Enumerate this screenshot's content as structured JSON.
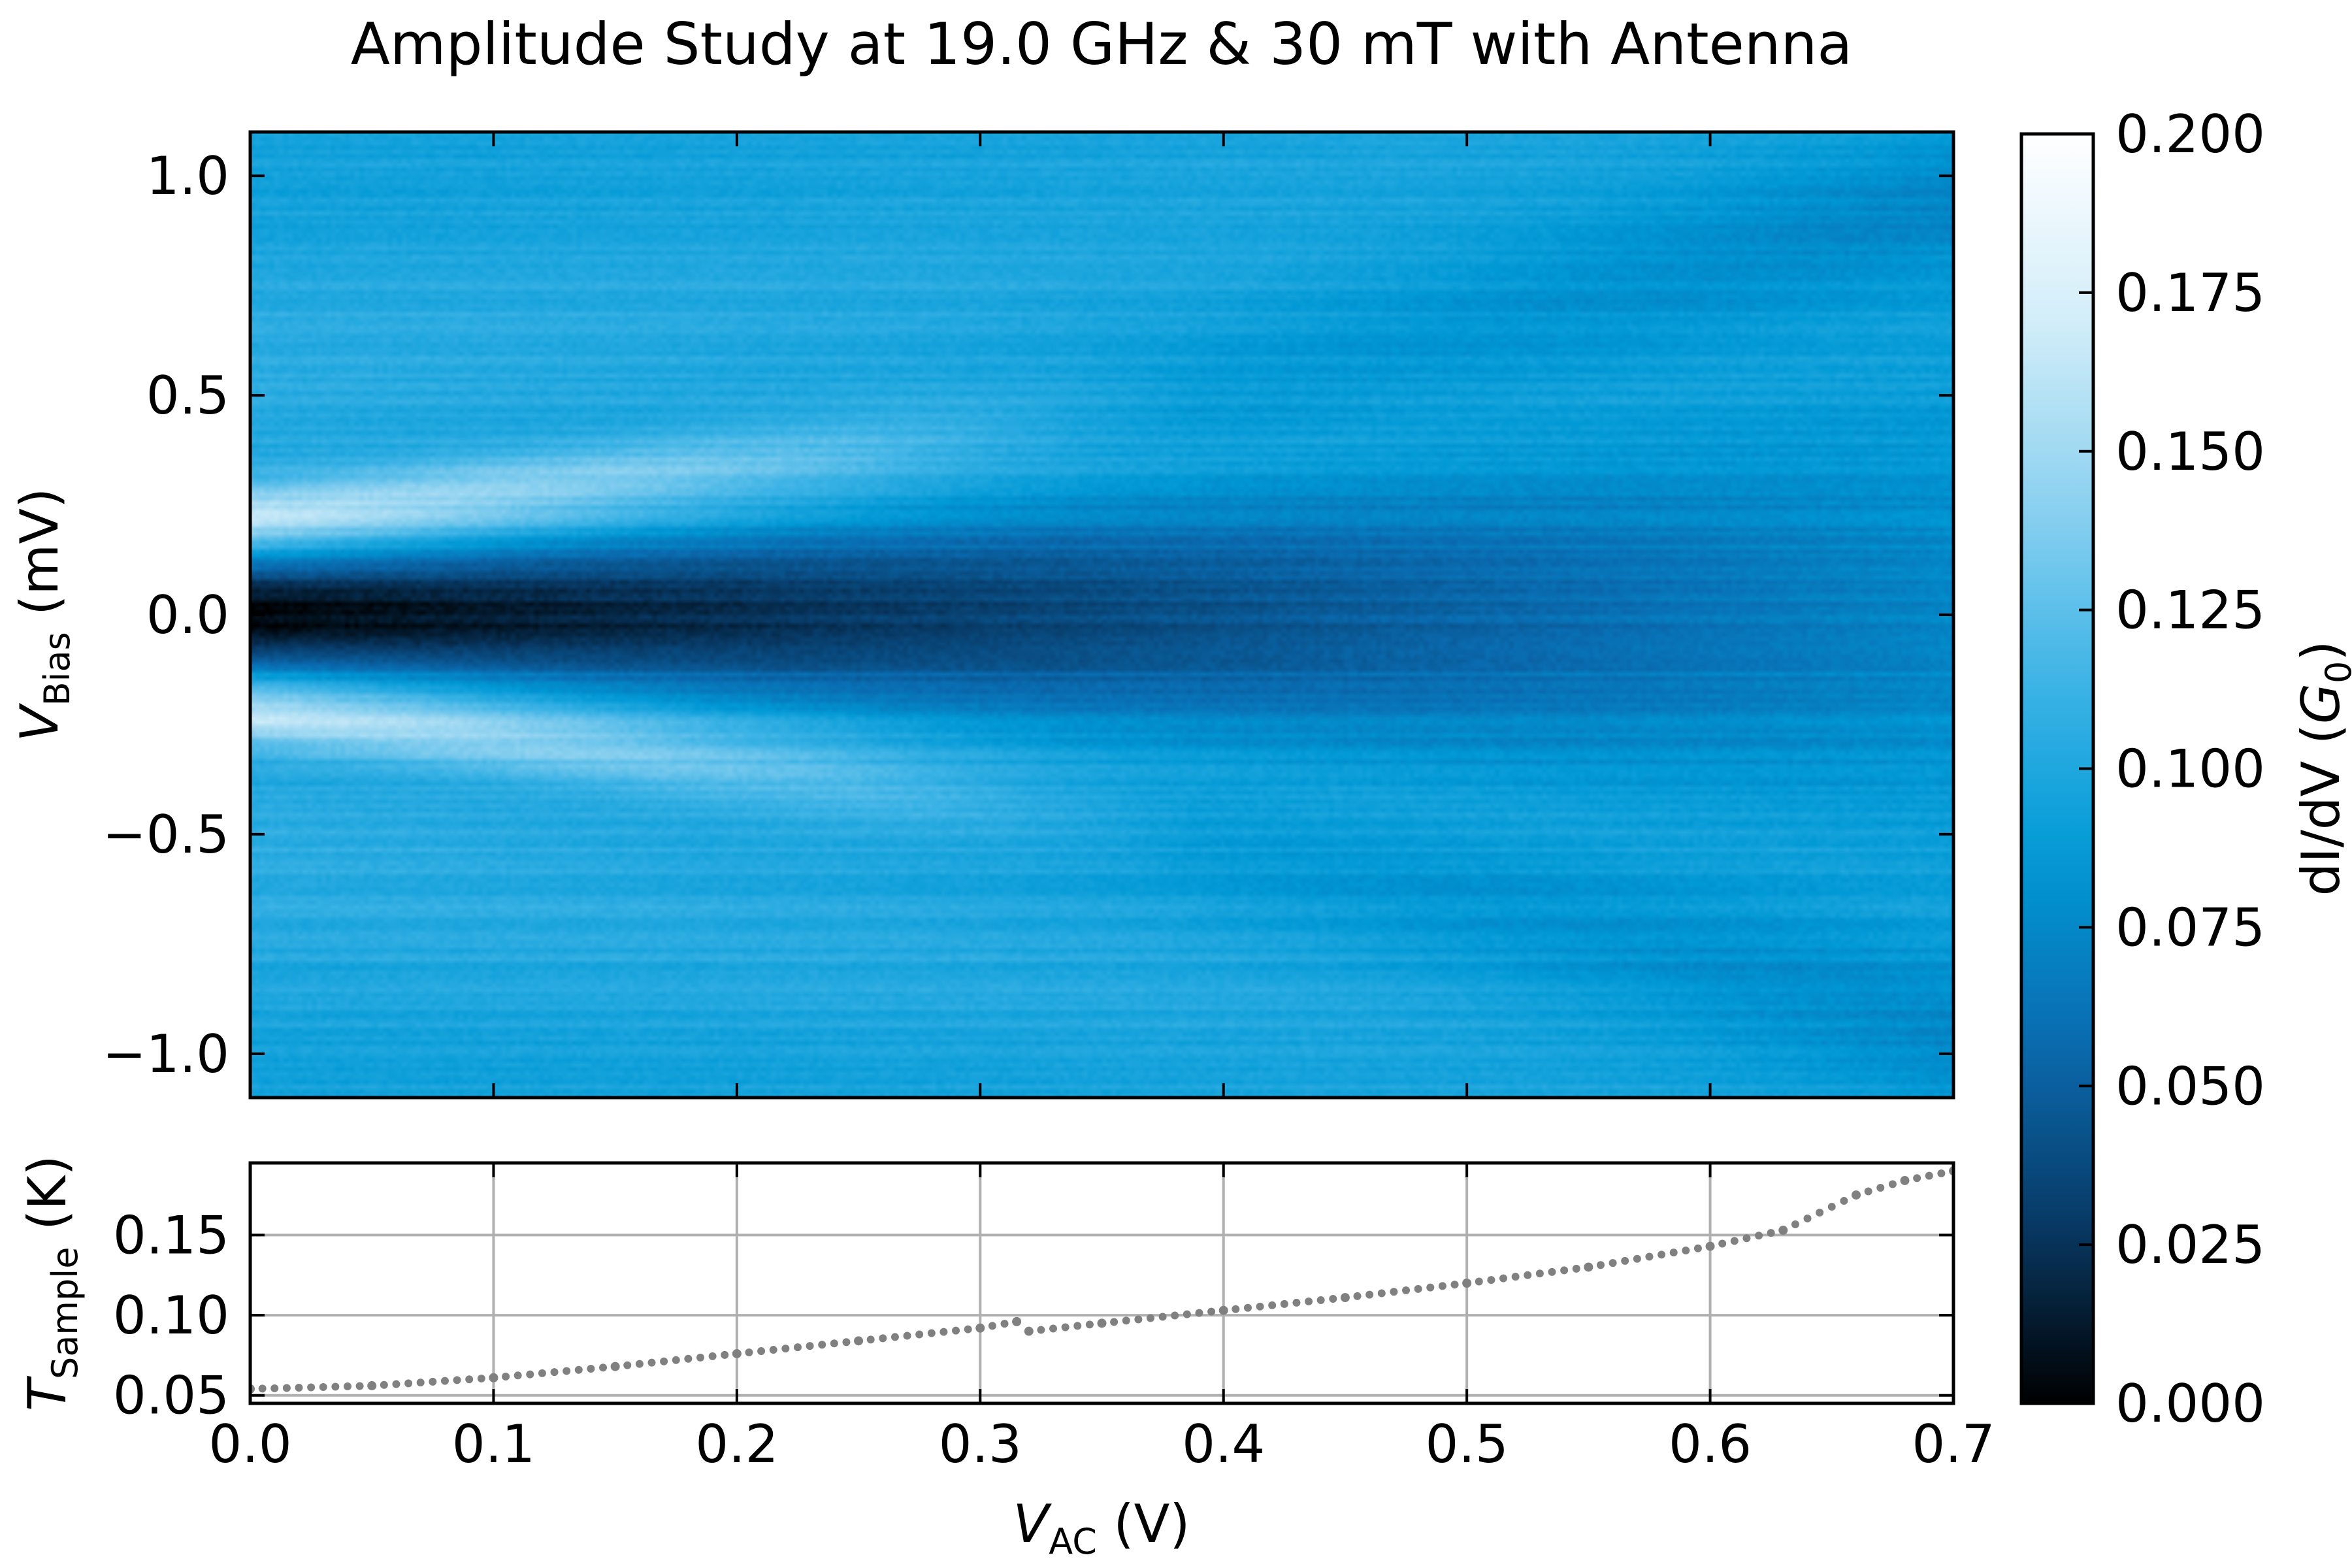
{
  "chart_data": [
    {
      "type": "heatmap",
      "title": "Amplitude Study at 19.0 GHz & 30 mT with Antenna",
      "xlabel": "V_AC (V)",
      "ylabel_main": "V",
      "ylabel_sub": "Bias",
      "ylabel_unit": " (mV)",
      "xlim": [
        0.0,
        0.7
      ],
      "ylim": [
        -1.1,
        1.1
      ],
      "yticks": [
        -1.0,
        -0.5,
        0.0,
        0.5,
        1.0
      ],
      "ytick_labels": [
        "−1.0",
        "−0.5",
        "0.0",
        "0.5",
        "1.0"
      ],
      "colorbar": {
        "label_prefix": "dI/dV (",
        "label_g": "G",
        "label_sub": "0",
        "label_suffix": ")",
        "range": [
          0.0,
          0.2
        ],
        "ticks": [
          0.0,
          0.025,
          0.05,
          0.075,
          0.1,
          0.125,
          0.15,
          0.175,
          0.2
        ],
        "tick_labels": [
          "0.000",
          "0.025",
          "0.050",
          "0.075",
          "0.100",
          "0.125",
          "0.150",
          "0.175",
          "0.200"
        ],
        "colors": [
          "#000000",
          "#083a66",
          "#0a6bb0",
          "#0099d6",
          "#3eb4e6",
          "#8fd2f0",
          "#d4eef9",
          "#ffffff"
        ]
      },
      "features": {
        "background_level": 0.095,
        "zero_bias_dip_min": 0.002,
        "coherence_peak_level": 0.16,
        "peak_bias_at_zero_ac": 0.23,
        "peak_bias_at_max_ac": 1.0
      }
    },
    {
      "type": "scatter",
      "xlabel_main": "V",
      "xlabel_sub": "AC",
      "xlabel_unit": " (V)",
      "ylabel_main": "T",
      "ylabel_sub": "Sample",
      "ylabel_unit": " (K)",
      "xlim": [
        0.0,
        0.7
      ],
      "ylim": [
        0.045,
        0.195
      ],
      "xticks": [
        0.0,
        0.1,
        0.2,
        0.3,
        0.4,
        0.5,
        0.6,
        0.7
      ],
      "xtick_labels": [
        "0.0",
        "0.1",
        "0.2",
        "0.3",
        "0.4",
        "0.5",
        "0.6",
        "0.7"
      ],
      "yticks": [
        0.05,
        0.1,
        0.15
      ],
      "ytick_labels": [
        "0.05",
        "0.10",
        "0.15"
      ],
      "grid": true,
      "marker_color": "#808080",
      "x": [
        0.0,
        0.05,
        0.1,
        0.15,
        0.2,
        0.25,
        0.3,
        0.315,
        0.32,
        0.35,
        0.4,
        0.45,
        0.5,
        0.55,
        0.6,
        0.63,
        0.66,
        0.68,
        0.7
      ],
      "y": [
        0.054,
        0.056,
        0.061,
        0.068,
        0.076,
        0.084,
        0.092,
        0.096,
        0.09,
        0.095,
        0.103,
        0.111,
        0.12,
        0.13,
        0.143,
        0.153,
        0.175,
        0.184,
        0.19
      ]
    }
  ]
}
